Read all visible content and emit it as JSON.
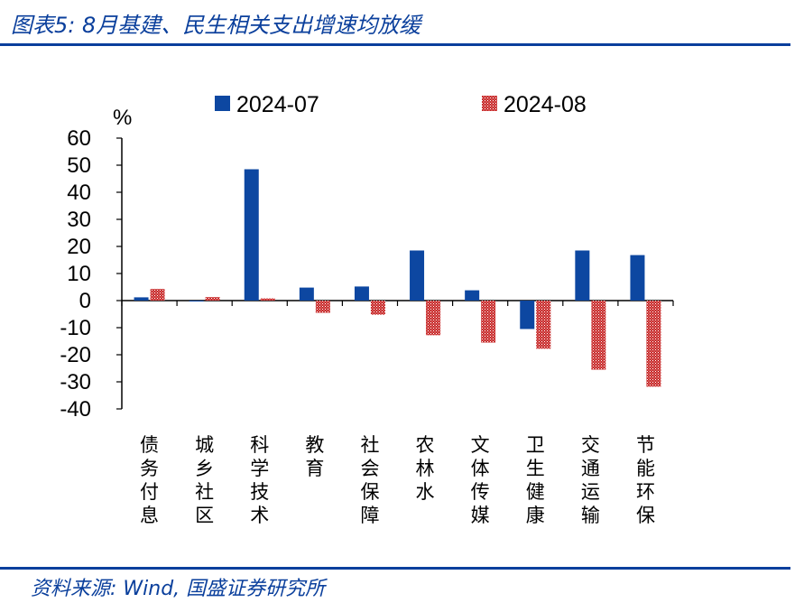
{
  "header": {
    "title": "图表5:  8月基建、民生相关支出增速均放缓"
  },
  "footer": {
    "source": "资料来源: Wind, 国盛证券研究所"
  },
  "colors": {
    "brand": "#0a3f9c",
    "series_1": "#0d47a1",
    "series_2": "#c62828"
  },
  "chart_data": {
    "type": "bar",
    "ylabel": "%",
    "ylim": [
      -40,
      60
    ],
    "yticks": [
      60,
      50,
      40,
      30,
      20,
      10,
      0,
      -10,
      -20,
      -30,
      -40
    ],
    "legend_position": "top",
    "categories": [
      "债务付息",
      "城乡社区",
      "科学技术",
      "教育",
      "社会保障",
      "农林水",
      "文体传媒",
      "卫生健康",
      "交通运输",
      "节能环保"
    ],
    "series": [
      {
        "name": "2024-07",
        "values": [
          1.2,
          -0.3,
          48.5,
          4.8,
          5.2,
          18.5,
          3.8,
          -10.5,
          18.5,
          16.8
        ]
      },
      {
        "name": "2024-08",
        "values": [
          4.3,
          1.3,
          0.8,
          -4.5,
          -5.2,
          -12.8,
          -15.5,
          -17.8,
          -25.5,
          -31.8
        ]
      }
    ]
  }
}
